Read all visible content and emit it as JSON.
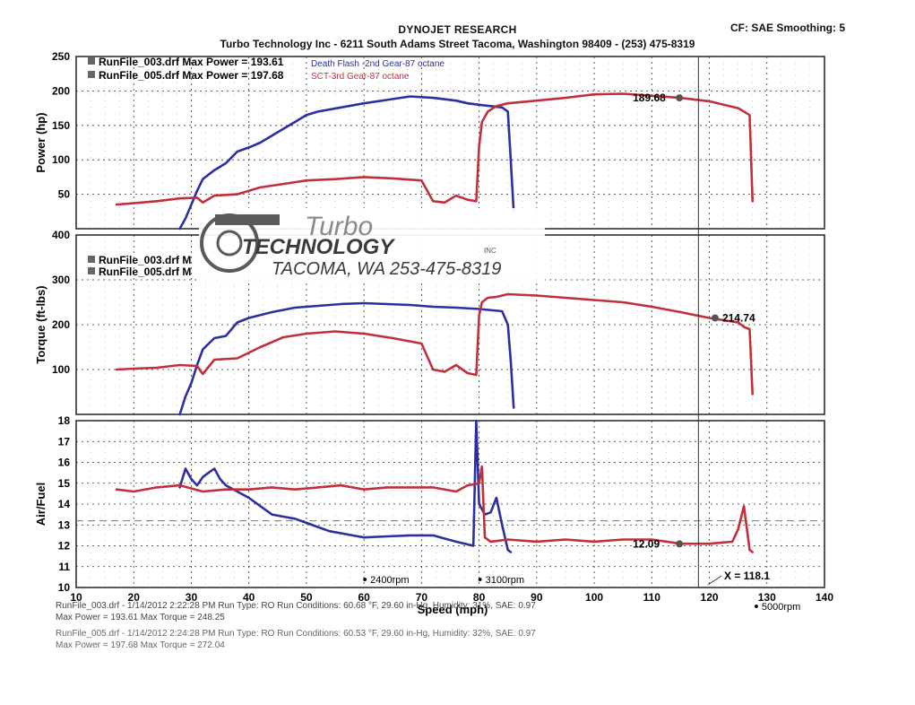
{
  "header": {
    "title": "DYNOJET RESEARCH",
    "subtitle": "Turbo Technology Inc - 6211 South Adams Street Tacoma, Washington 98409 - (253) 475-8319",
    "cf": "CF: SAE  Smoothing: 5"
  },
  "watermark": {
    "logo_top": "Turbo",
    "logo_mid": "TECHNOLOGY",
    "logo_inc": "INC",
    "logo_bottom": "TACOMA, WA  253-475-8319"
  },
  "legend": {
    "run1": "RunFile_003.drf Max Power = 193.61",
    "run2": "RunFile_005.drf Max Power = 197.68",
    "run1_note": "Death Flash -2nd Gear-87 octane",
    "run2_note": "SCT-3rd Gear-87 octane",
    "run1_short": "RunFile_003.drf M",
    "run2_short": "RunFile_005.drf M",
    "run1_color": "#2b2fa0",
    "run2_color": "#c0303a"
  },
  "chart_data": [
    {
      "type": "line",
      "ylabel": "Power (hp)",
      "xlabel": "Speed (mph)",
      "xlim": [
        10,
        140
      ],
      "ylim": [
        0,
        250
      ],
      "yticks": [
        50,
        100,
        150,
        200,
        250
      ],
      "xticks": [
        10,
        20,
        30,
        40,
        50,
        60,
        70,
        80,
        90,
        100,
        110,
        120,
        130,
        140
      ],
      "marker_label": "189.68",
      "series": [
        {
          "name": "RunFile_003.drf",
          "color": "#2b2fa0",
          "x": [
            28,
            29,
            30,
            31,
            32,
            34,
            36,
            38,
            40,
            42,
            44,
            46,
            48,
            50,
            52,
            56,
            60,
            64,
            68,
            72,
            76,
            78,
            80,
            82,
            84,
            85,
            85.5,
            86
          ],
          "y": [
            0,
            15,
            35,
            55,
            72,
            85,
            95,
            112,
            118,
            125,
            135,
            145,
            155,
            165,
            170,
            176,
            182,
            187,
            192,
            190,
            186,
            182,
            180,
            178,
            176,
            170,
            100,
            25
          ]
        },
        {
          "name": "RunFile_005.drf",
          "color": "#c0303a",
          "x": [
            17,
            20,
            24,
            28,
            31,
            32,
            34,
            38,
            42,
            46,
            50,
            55,
            60,
            65,
            70,
            72,
            74,
            76,
            78,
            79.5,
            80,
            80.5,
            81.5,
            83,
            85,
            90,
            95,
            100,
            105,
            110,
            115,
            120,
            125,
            126,
            127,
            127.5
          ],
          "y": [
            35,
            37,
            40,
            44,
            45,
            38,
            48,
            50,
            60,
            65,
            70,
            72,
            75,
            73,
            70,
            40,
            38,
            48,
            42,
            40,
            120,
            155,
            170,
            178,
            182,
            186,
            190,
            195,
            196,
            193,
            190,
            185,
            175,
            170,
            165,
            40
          ]
        }
      ]
    },
    {
      "type": "line",
      "ylabel": "Torque (ft-lbs)",
      "xlabel": "Speed (mph)",
      "xlim": [
        10,
        140
      ],
      "ylim": [
        0,
        400
      ],
      "yticks": [
        100,
        200,
        300,
        400
      ],
      "xticks": [
        10,
        20,
        30,
        40,
        50,
        60,
        70,
        80,
        90,
        100,
        110,
        120,
        130,
        140
      ],
      "marker_label": "214.74",
      "series": [
        {
          "name": "RunFile_003.drf",
          "color": "#2b2fa0",
          "x": [
            28,
            29,
            30,
            31,
            32,
            34,
            36,
            38,
            40,
            44,
            48,
            52,
            56,
            60,
            64,
            68,
            72,
            76,
            80,
            84,
            85,
            85.5,
            86
          ],
          "y": [
            0,
            40,
            70,
            110,
            145,
            170,
            175,
            205,
            215,
            228,
            238,
            242,
            246,
            248,
            246,
            244,
            240,
            238,
            235,
            230,
            200,
            120,
            15
          ]
        },
        {
          "name": "RunFile_005.drf",
          "color": "#c0303a",
          "x": [
            17,
            20,
            24,
            28,
            31,
            32,
            34,
            38,
            42,
            46,
            50,
            55,
            60,
            65,
            70,
            72,
            74,
            76,
            78,
            79.5,
            80,
            80.5,
            81.5,
            83,
            85,
            90,
            95,
            100,
            105,
            110,
            115,
            120,
            125,
            126,
            127,
            127.5
          ],
          "y": [
            100,
            102,
            104,
            110,
            108,
            90,
            122,
            125,
            150,
            172,
            180,
            185,
            180,
            170,
            158,
            100,
            95,
            110,
            92,
            88,
            220,
            250,
            260,
            262,
            268,
            265,
            260,
            255,
            250,
            240,
            228,
            215,
            205,
            195,
            190,
            45
          ]
        }
      ]
    },
    {
      "type": "line",
      "ylabel": "Air/Fuel",
      "xlabel": "Speed (mph)",
      "xlim": [
        10,
        140
      ],
      "ylim": [
        10,
        18
      ],
      "yticks": [
        10,
        11,
        12,
        13,
        14,
        15,
        16,
        17,
        18
      ],
      "xticks": [
        10,
        20,
        30,
        40,
        50,
        60,
        70,
        80,
        90,
        100,
        110,
        120,
        130,
        140
      ],
      "reference_line": 13.2,
      "marker_label": "12.09",
      "cursor_label": "X = 118.1",
      "rpm_labels": [
        "2400rpm",
        "3100rpm",
        "5000rpm"
      ],
      "series": [
        {
          "name": "RunFile_003.drf",
          "color": "#2b2fa0",
          "x": [
            28,
            29,
            30,
            31,
            32,
            33,
            34,
            35,
            36,
            38,
            40,
            42,
            44,
            46,
            48,
            50,
            52,
            54,
            56,
            58,
            60,
            64,
            68,
            72,
            76,
            79,
            79.5,
            80,
            81,
            82,
            83,
            84,
            85,
            85.5
          ],
          "y": [
            14.8,
            15.7,
            15.2,
            14.9,
            15.3,
            15.5,
            15.7,
            15.2,
            14.9,
            14.6,
            14.3,
            13.9,
            13.5,
            13.4,
            13.3,
            13.1,
            12.9,
            12.7,
            12.6,
            12.5,
            12.4,
            12.45,
            12.5,
            12.5,
            12.2,
            12.0,
            18.0,
            14.0,
            13.5,
            13.6,
            14.3,
            13.0,
            11.8,
            11.7
          ]
        },
        {
          "name": "RunFile_005.drf",
          "color": "#c0303a",
          "x": [
            17,
            20,
            24,
            28,
            32,
            36,
            40,
            44,
            48,
            52,
            56,
            60,
            64,
            68,
            72,
            76,
            78,
            80,
            80.5,
            81,
            82,
            85,
            90,
            95,
            100,
            105,
            110,
            115,
            120,
            124,
            125,
            126,
            127,
            127.5
          ],
          "y": [
            14.7,
            14.6,
            14.8,
            14.9,
            14.6,
            14.7,
            14.7,
            14.8,
            14.7,
            14.8,
            14.9,
            14.7,
            14.8,
            14.8,
            14.8,
            14.6,
            14.9,
            15.0,
            15.8,
            12.4,
            12.2,
            12.3,
            12.2,
            12.3,
            12.2,
            12.3,
            12.3,
            12.1,
            12.1,
            12.2,
            12.8,
            13.9,
            11.8,
            11.7
          ]
        }
      ]
    }
  ],
  "footer": {
    "line1": "RunFile_003.drf - 1/14/2012 2:22:28 PM  Run Type: RO  Run Conditions: 60.68 °F, 29.60 in-Hg,  Humidity:  31%, SAE: 0.97",
    "line2": "Max Power = 193.61  Max Torque = 248.25",
    "line3": "RunFile_005.drf - 1/14/2012 2:24:28 PM  Run Type: RO  Run Conditions: 60.53 °F, 29.60 in-Hg,  Humidity:  32%, SAE: 0.97",
    "line4": "Max Power = 197.68  Max Torque = 272.04"
  }
}
